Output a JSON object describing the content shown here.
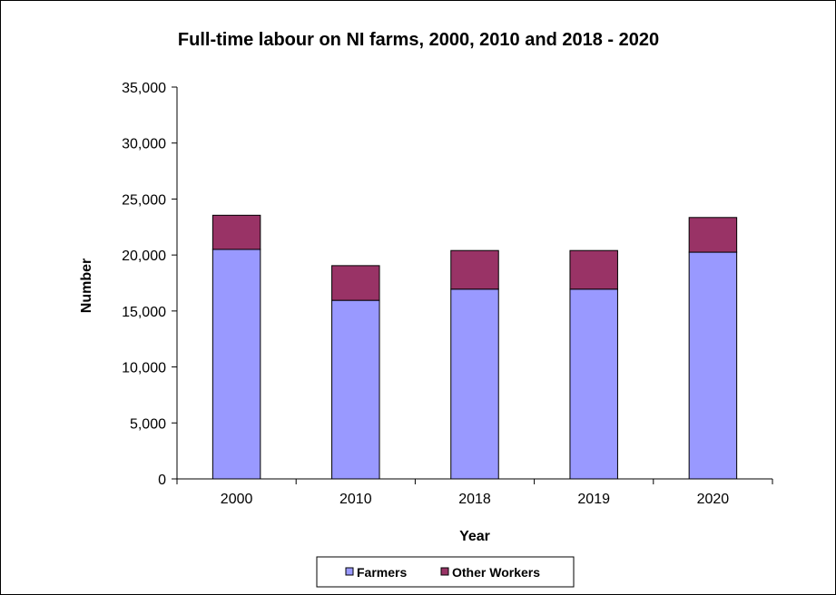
{
  "chart_data": {
    "type": "bar",
    "stacked": true,
    "title": "Full-time labour on NI farms, 2000, 2010 and 2018 - 2020",
    "xlabel": "Year",
    "ylabel": "Number",
    "categories": [
      "2000",
      "2010",
      "2018",
      "2019",
      "2020"
    ],
    "series": [
      {
        "name": "Farmers",
        "color": "#9999ff",
        "values": [
          20500,
          15950,
          16950,
          16950,
          20250
        ]
      },
      {
        "name": "Other Workers",
        "color": "#993366",
        "values": [
          3050,
          3100,
          3450,
          3450,
          3100
        ]
      }
    ],
    "ylim": [
      0,
      35000
    ],
    "yticks": [
      0,
      5000,
      10000,
      15000,
      20000,
      25000,
      30000,
      35000
    ],
    "ytick_labels": [
      "0",
      "5,000",
      "10,000",
      "15,000",
      "20,000",
      "25,000",
      "30,000",
      "35,000"
    ],
    "grid": false,
    "legend": "bottom"
  }
}
